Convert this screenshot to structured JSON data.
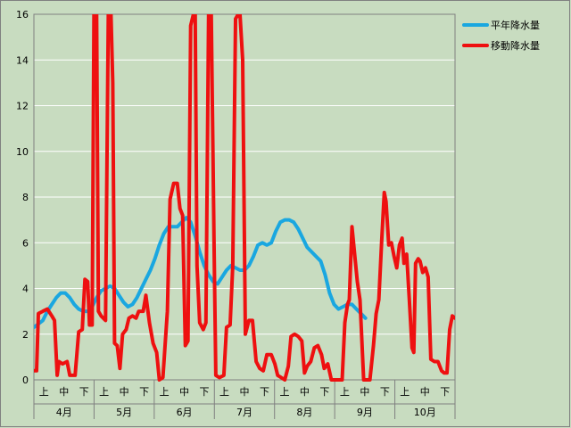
{
  "chart_data": {
    "type": "line",
    "title": "",
    "ylim": [
      0,
      16
    ],
    "yticks": [
      0,
      2,
      4,
      6,
      8,
      10,
      12,
      14,
      16
    ],
    "grid": true,
    "legend_position": "top-right",
    "x_subcategories": [
      "上",
      "中",
      "下"
    ],
    "x_months": [
      "4月",
      "5月",
      "6月",
      "7月",
      "8月",
      "9月",
      "10月"
    ],
    "series": [
      {
        "name": "平年降水量",
        "color": "#1aa7e0",
        "points": [
          [
            0.0,
            2.3
          ],
          [
            1.0,
            2.6
          ],
          [
            1.5,
            3.0
          ],
          [
            2.0,
            3.3
          ],
          [
            2.5,
            3.6
          ],
          [
            3.0,
            3.8
          ],
          [
            3.5,
            3.8
          ],
          [
            4.0,
            3.6
          ],
          [
            4.5,
            3.3
          ],
          [
            5.0,
            3.1
          ],
          [
            5.5,
            3.0
          ],
          [
            6.0,
            3.0
          ],
          [
            6.5,
            3.2
          ],
          [
            7.0,
            3.6
          ],
          [
            7.5,
            3.9
          ],
          [
            8.0,
            4.0
          ],
          [
            8.5,
            4.1
          ],
          [
            9.0,
            4.0
          ],
          [
            9.5,
            3.7
          ],
          [
            10.0,
            3.4
          ],
          [
            10.5,
            3.2
          ],
          [
            11.0,
            3.3
          ],
          [
            11.5,
            3.6
          ],
          [
            12.0,
            4.0
          ],
          [
            12.5,
            4.4
          ],
          [
            13.0,
            4.8
          ],
          [
            13.5,
            5.3
          ],
          [
            14.0,
            5.9
          ],
          [
            14.5,
            6.4
          ],
          [
            15.0,
            6.7
          ],
          [
            15.5,
            6.7
          ],
          [
            16.0,
            6.7
          ],
          [
            16.5,
            6.9
          ],
          [
            17.0,
            7.1
          ],
          [
            17.5,
            6.9
          ],
          [
            18.0,
            6.3
          ],
          [
            18.5,
            5.6
          ],
          [
            19.0,
            5.0
          ],
          [
            19.5,
            4.6
          ],
          [
            20.0,
            4.3
          ],
          [
            20.5,
            4.2
          ],
          [
            21.0,
            4.5
          ],
          [
            21.5,
            4.8
          ],
          [
            22.0,
            5.0
          ],
          [
            22.5,
            4.9
          ],
          [
            23.0,
            4.8
          ],
          [
            23.5,
            4.8
          ],
          [
            24.0,
            5.0
          ],
          [
            24.5,
            5.4
          ],
          [
            25.0,
            5.9
          ],
          [
            25.5,
            6.0
          ],
          [
            26.0,
            5.9
          ],
          [
            26.5,
            6.0
          ],
          [
            27.0,
            6.5
          ],
          [
            27.5,
            6.9
          ],
          [
            28.0,
            7.0
          ],
          [
            28.5,
            7.0
          ],
          [
            29.0,
            6.9
          ],
          [
            29.5,
            6.6
          ],
          [
            30.0,
            6.2
          ],
          [
            30.5,
            5.8
          ],
          [
            31.0,
            5.6
          ],
          [
            31.5,
            5.4
          ],
          [
            32.0,
            5.2
          ],
          [
            32.5,
            4.6
          ],
          [
            33.0,
            3.8
          ],
          [
            33.5,
            3.3
          ],
          [
            34.0,
            3.1
          ],
          [
            34.5,
            3.2
          ],
          [
            35.0,
            3.3
          ],
          [
            35.5,
            3.3
          ],
          [
            36.0,
            3.1
          ],
          [
            36.5,
            2.9
          ],
          [
            37.0,
            2.7
          ]
        ]
      },
      {
        "name": "移動降水量",
        "color": "#ee1010",
        "points": [
          [
            0.0,
            0.4
          ],
          [
            0.3,
            0.4
          ],
          [
            0.5,
            2.9
          ],
          [
            1.0,
            3.0
          ],
          [
            1.5,
            3.1
          ],
          [
            2.0,
            2.8
          ],
          [
            2.3,
            2.6
          ],
          [
            2.6,
            0.2
          ],
          [
            2.8,
            0.8
          ],
          [
            3.2,
            0.7
          ],
          [
            3.7,
            0.8
          ],
          [
            4.0,
            0.2
          ],
          [
            4.6,
            0.2
          ],
          [
            5.0,
            2.1
          ],
          [
            5.4,
            2.2
          ],
          [
            5.7,
            4.4
          ],
          [
            6.0,
            4.3
          ],
          [
            6.2,
            2.4
          ],
          [
            6.5,
            2.4
          ],
          [
            6.7,
            16.0
          ],
          [
            7.0,
            16.0
          ],
          [
            7.2,
            3.0
          ],
          [
            7.5,
            2.8
          ],
          [
            8.0,
            2.6
          ],
          [
            8.3,
            16.0
          ],
          [
            8.6,
            16.0
          ],
          [
            8.8,
            13.0
          ],
          [
            9.0,
            1.6
          ],
          [
            9.3,
            1.5
          ],
          [
            9.6,
            0.5
          ],
          [
            9.9,
            2.0
          ],
          [
            10.3,
            2.2
          ],
          [
            10.6,
            2.7
          ],
          [
            11.0,
            2.8
          ],
          [
            11.4,
            2.7
          ],
          [
            11.7,
            3.0
          ],
          [
            12.2,
            3.0
          ],
          [
            12.5,
            3.7
          ],
          [
            12.9,
            2.5
          ],
          [
            13.3,
            1.6
          ],
          [
            13.7,
            1.2
          ],
          [
            14.0,
            0.0
          ],
          [
            14.4,
            0.1
          ],
          [
            14.9,
            3.0
          ],
          [
            15.2,
            7.9
          ],
          [
            15.6,
            8.6
          ],
          [
            16.0,
            8.6
          ],
          [
            16.3,
            7.5
          ],
          [
            16.6,
            7.2
          ],
          [
            16.9,
            1.5
          ],
          [
            17.2,
            1.7
          ],
          [
            17.5,
            15.5
          ],
          [
            17.8,
            16.0
          ],
          [
            18.0,
            16.0
          ],
          [
            18.2,
            5.0
          ],
          [
            18.5,
            2.5
          ],
          [
            18.9,
            2.2
          ],
          [
            19.2,
            2.5
          ],
          [
            19.5,
            16.0
          ],
          [
            19.8,
            16.0
          ],
          [
            20.1,
            6.0
          ],
          [
            20.3,
            0.2
          ],
          [
            20.7,
            0.1
          ],
          [
            21.2,
            0.2
          ],
          [
            21.5,
            2.3
          ],
          [
            21.9,
            2.4
          ],
          [
            22.2,
            5.0
          ],
          [
            22.5,
            15.8
          ],
          [
            22.8,
            16.0
          ],
          [
            23.0,
            16.0
          ],
          [
            23.3,
            14.0
          ],
          [
            23.6,
            2.0
          ],
          [
            24.0,
            2.6
          ],
          [
            24.4,
            2.6
          ],
          [
            24.8,
            0.8
          ],
          [
            25.2,
            0.5
          ],
          [
            25.6,
            0.4
          ],
          [
            26.0,
            1.1
          ],
          [
            26.5,
            1.1
          ],
          [
            26.9,
            0.7
          ],
          [
            27.2,
            0.2
          ],
          [
            27.6,
            0.1
          ],
          [
            28.0,
            0.0
          ],
          [
            28.4,
            0.6
          ],
          [
            28.7,
            1.9
          ],
          [
            29.1,
            2.0
          ],
          [
            29.5,
            1.9
          ],
          [
            29.9,
            1.7
          ],
          [
            30.2,
            0.3
          ],
          [
            30.5,
            0.6
          ],
          [
            30.9,
            0.8
          ],
          [
            31.3,
            1.4
          ],
          [
            31.7,
            1.5
          ],
          [
            32.1,
            1.1
          ],
          [
            32.4,
            0.5
          ],
          [
            32.8,
            0.7
          ],
          [
            33.2,
            0.0
          ],
          [
            33.6,
            0.0
          ],
          [
            34.0,
            0.0
          ],
          [
            34.4,
            0.0
          ],
          [
            34.7,
            2.5
          ],
          [
            35.0,
            3.3
          ],
          [
            35.2,
            3.5
          ],
          [
            35.5,
            6.7
          ],
          [
            35.8,
            5.5
          ],
          [
            36.1,
            4.3
          ],
          [
            36.4,
            3.5
          ],
          [
            36.8,
            0.0
          ],
          [
            37.1,
            0.0
          ],
          [
            37.5,
            0.0
          ],
          [
            37.9,
            1.5
          ],
          [
            38.2,
            2.9
          ],
          [
            38.5,
            3.5
          ],
          [
            38.8,
            6.0
          ],
          [
            39.1,
            8.2
          ],
          [
            39.3,
            7.8
          ],
          [
            39.6,
            5.9
          ],
          [
            39.9,
            6.0
          ],
          [
            40.2,
            5.4
          ],
          [
            40.5,
            4.9
          ],
          [
            40.8,
            5.9
          ],
          [
            41.1,
            6.2
          ],
          [
            41.3,
            5.1
          ],
          [
            41.6,
            5.5
          ],
          [
            41.9,
            3.5
          ],
          [
            42.2,
            1.4
          ],
          [
            42.4,
            1.2
          ],
          [
            42.6,
            5.1
          ],
          [
            42.9,
            5.3
          ],
          [
            43.1,
            5.2
          ],
          [
            43.4,
            4.7
          ],
          [
            43.7,
            4.9
          ],
          [
            44.0,
            4.5
          ],
          [
            44.3,
            0.9
          ],
          [
            44.7,
            0.8
          ],
          [
            45.1,
            0.8
          ],
          [
            45.5,
            0.4
          ],
          [
            45.8,
            0.3
          ],
          [
            46.1,
            0.3
          ],
          [
            46.4,
            2.2
          ],
          [
            46.7,
            2.8
          ],
          [
            47.0,
            2.7
          ]
        ]
      }
    ]
  }
}
